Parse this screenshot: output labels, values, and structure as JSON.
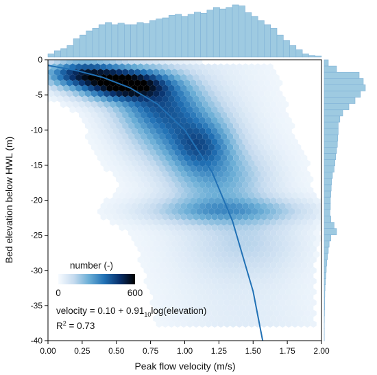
{
  "chart_data": {
    "type": "hexbin",
    "xlabel": "Peak flow velocity (m/s)",
    "ylabel": "Bed elevation below HWL (m)",
    "xlim": [
      0,
      2
    ],
    "ylim": [
      -40,
      0
    ],
    "x_ticks": [
      "0.00",
      "0.25",
      "0.50",
      "0.75",
      "1.00",
      "1.25",
      "1.50",
      "1.75",
      "2.00"
    ],
    "y_ticks": [
      "0",
      "-5",
      "-10",
      "-15",
      "-20",
      "-25",
      "-30",
      "-35",
      "-40"
    ],
    "colorbar": {
      "label": "number (-)",
      "min_label": "0",
      "max_label": "600",
      "min": 0,
      "max": 600,
      "colors": [
        "#f7fbff",
        "#c6dbef",
        "#6baed6",
        "#2171b5",
        "#08306b",
        "#000000"
      ]
    },
    "density_clusters": [
      {
        "x": 0.25,
        "y": -2,
        "sx": 0.18,
        "sy": 1.2,
        "weight": 420
      },
      {
        "x": 0.55,
        "y": -3.5,
        "sx": 0.2,
        "sy": 1.4,
        "weight": 600
      },
      {
        "x": 0.8,
        "y": -6,
        "sx": 0.2,
        "sy": 2.5,
        "weight": 260
      },
      {
        "x": 0.95,
        "y": -10,
        "sx": 0.22,
        "sy": 3.0,
        "weight": 200
      },
      {
        "x": 1.12,
        "y": -12.5,
        "sx": 0.15,
        "sy": 2.5,
        "weight": 220
      },
      {
        "x": 1.25,
        "y": -17,
        "sx": 0.22,
        "sy": 3.0,
        "weight": 150
      },
      {
        "x": 1.3,
        "y": -21.5,
        "sx": 0.35,
        "sy": 1.2,
        "weight": 170
      },
      {
        "x": 1.45,
        "y": -26,
        "sx": 0.25,
        "sy": 3.0,
        "weight": 60
      }
    ],
    "fit_curve": {
      "x": [
        0.0,
        0.2,
        0.4,
        0.6,
        0.8,
        1.0,
        1.2,
        1.35,
        1.5,
        1.57
      ],
      "y": [
        -0.8,
        -1.5,
        -2.5,
        -4.0,
        -6.3,
        -10.0,
        -16.0,
        -23.0,
        -33.0,
        -40.0
      ],
      "color": "#2171b5"
    },
    "top_histogram": {
      "bin_start": 0,
      "bin_width": 0.0465,
      "values": [
        0.06,
        0.12,
        0.16,
        0.22,
        0.35,
        0.42,
        0.5,
        0.55,
        0.62,
        0.66,
        0.62,
        0.65,
        0.62,
        0.62,
        0.66,
        0.64,
        0.7,
        0.73,
        0.75,
        0.8,
        0.82,
        0.78,
        0.82,
        0.86,
        0.84,
        0.9,
        0.95,
        0.92,
        0.95,
        1.0,
        0.98,
        0.85,
        0.78,
        0.7,
        0.62,
        0.55,
        0.42,
        0.32,
        0.22,
        0.14,
        0.06,
        0.03,
        0.02
      ],
      "color": "#9ecae1"
    },
    "right_histogram": {
      "bin_start": 0,
      "bin_width": -0.89,
      "values": [
        0.1,
        0.3,
        0.85,
        0.95,
        1.0,
        0.88,
        0.75,
        0.6,
        0.45,
        0.38,
        0.34,
        0.34,
        0.33,
        0.32,
        0.3,
        0.28,
        0.26,
        0.24,
        0.2,
        0.18,
        0.17,
        0.16,
        0.15,
        0.15,
        0.14,
        0.16,
        0.24,
        0.3,
        0.16,
        0.12,
        0.1,
        0.08,
        0.06,
        0.05,
        0.04,
        0.03,
        0.02,
        0.015,
        0.01,
        0.01,
        0.006,
        0.004,
        0.002,
        0.001,
        0.001
      ],
      "color": "#9ecae1"
    },
    "annotation": {
      "eq_prefix": "velocity =  0.10 + 0.91",
      "eq_subscript": "10",
      "eq_suffix": "log(elevation)",
      "r2_prefix": "R",
      "r2_sup": "2",
      "r2_suffix": " = 0.73"
    }
  }
}
